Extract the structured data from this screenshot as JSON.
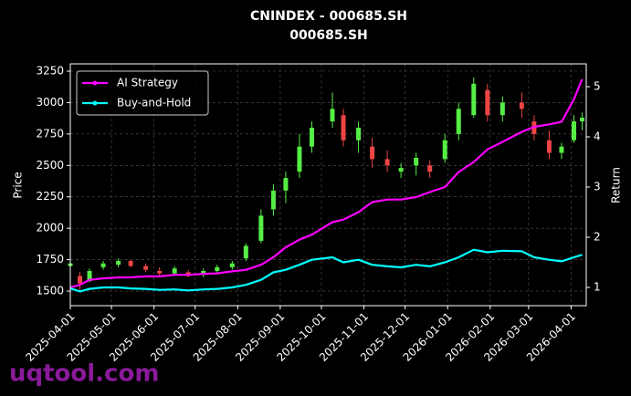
{
  "chart_data": {
    "type": "candlestick",
    "title": "CNINDEX - 000685.SH",
    "subtitle": "000685.SH",
    "y_label": "Price",
    "y2_label": "Return",
    "watermark": "uqtool.com",
    "x": [
      "2025-04-01",
      "2025-04-08",
      "2025-04-15",
      "2025-04-25",
      "2025-05-06",
      "2025-05-15",
      "2025-05-26",
      "2025-06-05",
      "2025-06-16",
      "2025-06-26",
      "2025-07-07",
      "2025-07-17",
      "2025-07-28",
      "2025-08-07",
      "2025-08-18",
      "2025-08-27",
      "2025-09-05",
      "2025-09-15",
      "2025-09-24",
      "2025-10-09",
      "2025-10-17",
      "2025-10-28",
      "2025-11-07",
      "2025-11-18",
      "2025-11-28",
      "2025-12-09",
      "2025-12-19",
      "2025-12-30",
      "2026-01-09",
      "2026-01-20",
      "2026-01-30",
      "2026-02-10",
      "2026-02-24",
      "2026-03-05",
      "2026-03-16",
      "2026-03-25",
      "2026-04-03",
      "2026-04-09"
    ],
    "candles": {
      "up_color": "#55ee44",
      "down_color": "#ee4444",
      "open": [
        1700,
        1620,
        1580,
        1690,
        1710,
        1740,
        1700,
        1660,
        1640,
        1650,
        1630,
        1660,
        1690,
        1760,
        1900,
        2150,
        2300,
        2450,
        2650,
        2850,
        2900,
        2700,
        2650,
        2550,
        2450,
        2500,
        2500,
        2550,
        2750,
        2900,
        3100,
        2900,
        3000,
        2850,
        2700,
        2600,
        2700,
        2850
      ],
      "high": [
        1740,
        1650,
        1680,
        1740,
        1760,
        1750,
        1720,
        1690,
        1700,
        1670,
        1680,
        1710,
        1740,
        1880,
        2150,
        2350,
        2450,
        2750,
        2850,
        3080,
        2950,
        2850,
        2720,
        2620,
        2520,
        2600,
        2540,
        2750,
        3000,
        3200,
        3150,
        3050,
        3080,
        2900,
        2780,
        2680,
        2900,
        2920
      ],
      "low": [
        1680,
        1500,
        1570,
        1670,
        1690,
        1690,
        1650,
        1620,
        1630,
        1610,
        1610,
        1640,
        1670,
        1740,
        1880,
        2100,
        2200,
        2400,
        2600,
        2800,
        2650,
        2600,
        2480,
        2450,
        2400,
        2420,
        2400,
        2520,
        2700,
        2880,
        2850,
        2850,
        2880,
        2700,
        2550,
        2550,
        2680,
        2780
      ],
      "close": [
        1720,
        1560,
        1660,
        1720,
        1740,
        1700,
        1670,
        1640,
        1680,
        1620,
        1660,
        1690,
        1720,
        1860,
        2100,
        2300,
        2400,
        2650,
        2800,
        2950,
        2700,
        2800,
        2550,
        2500,
        2480,
        2560,
        2450,
        2700,
        2950,
        3150,
        2900,
        3000,
        2950,
        2750,
        2600,
        2650,
        2850,
        2880
      ]
    },
    "series": [
      {
        "name": "AI Strategy",
        "color": "#ff00ff",
        "axis": "y2",
        "values": [
          1.0,
          1.05,
          1.15,
          1.18,
          1.2,
          1.2,
          1.22,
          1.22,
          1.25,
          1.25,
          1.27,
          1.28,
          1.32,
          1.35,
          1.45,
          1.6,
          1.8,
          1.95,
          2.05,
          2.3,
          2.35,
          2.5,
          2.7,
          2.75,
          2.75,
          2.8,
          2.9,
          3.0,
          3.3,
          3.5,
          3.75,
          3.9,
          4.1,
          4.2,
          4.25,
          4.3,
          4.75,
          5.15
        ]
      },
      {
        "name": "Buy-and-Hold",
        "color": "#00ffff",
        "axis": "y2",
        "values": [
          0.98,
          0.92,
          0.97,
          1.0,
          1.0,
          0.98,
          0.97,
          0.95,
          0.96,
          0.94,
          0.96,
          0.97,
          1.0,
          1.05,
          1.15,
          1.3,
          1.35,
          1.45,
          1.55,
          1.6,
          1.5,
          1.55,
          1.45,
          1.42,
          1.4,
          1.45,
          1.42,
          1.5,
          1.6,
          1.75,
          1.7,
          1.73,
          1.72,
          1.6,
          1.55,
          1.52,
          1.6,
          1.65
        ]
      }
    ],
    "xlim": [
      "2025-04-01",
      "2026-04-12"
    ],
    "xticks": [
      "2025-04-01",
      "2025-05-01",
      "2025-06-01",
      "2025-07-01",
      "2025-08-01",
      "2025-09-01",
      "2025-10-01",
      "2025-11-01",
      "2025-12-01",
      "2026-01-01",
      "2026-02-01",
      "2026-03-01",
      "2026-04-01"
    ],
    "ylim": [
      1384,
      3308
    ],
    "yticks": [
      1500,
      1750,
      2000,
      2250,
      2500,
      2750,
      3000,
      3250
    ],
    "y2lim": [
      0.636,
      5.455
    ],
    "y2ticks": [
      1,
      2,
      3,
      4,
      5
    ],
    "grid": true,
    "legend": "upper-left"
  }
}
